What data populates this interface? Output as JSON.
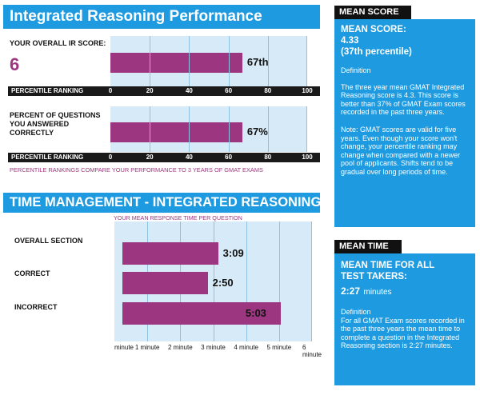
{
  "ir_section": {
    "title": "Integrated Reasoning Performance",
    "score_label": "YOUR OVERALL IR SCORE:",
    "score_value": "6",
    "percentile_axis_label": "PERCENTILE RANKING",
    "questions_label_1": "PERCENT OF QUESTIONS",
    "questions_label_2": "YOU ANSWERED",
    "questions_label_3": "CORRECTLY",
    "footnote": "PERCENTILE RANKINGS COMPARE YOUR PERFORMANCE TO 3 YEARS OF GMAT EXAMS"
  },
  "time_section": {
    "title": "TIME MANAGEMENT - INTEGRATED REASONING",
    "subtitle": "YOUR MEAN RESPONSE TIME PER QUESTION"
  },
  "mean_score_panel": {
    "header": "MEAN SCORE",
    "title": "MEAN SCORE:",
    "value": "4.33",
    "percentile": "(37th percentile)",
    "definition_label": "Definition",
    "definition_text": "The three year mean GMAT Integrated Reasoning score is 4.3. This score is better than 37% of GMAT Exam scores recorded in the past three years.",
    "note_text": "Note:  GMAT scores are valid for five years. Even though your score won't change, your percentile ranking may change when compared with a newer pool of applicants.  Shifts tend to be gradual over long periods of time."
  },
  "mean_time_panel": {
    "header": "MEAN TIME",
    "title_1": "MEAN TIME FOR ALL",
    "title_2": "TEST TAKERS:",
    "value": "2:27",
    "unit": "minutes",
    "definition_label": "Definition",
    "definition_text": "For all GMAT Exam scores recorded in the past three years the mean time to complete a question in the Integrated Reasoning  section is 2:27 minutes."
  },
  "colors": {
    "accent_blue": "#1e9be0",
    "bar_purple": "#9c3680",
    "plot_bg": "#d6eaf7"
  },
  "chart_data": [
    {
      "type": "bar",
      "orientation": "horizontal",
      "title": "YOUR OVERALL IR SCORE:",
      "xlabel": "PERCENTILE RANKING",
      "xlim": [
        0,
        100
      ],
      "ticks": [
        "0",
        "20",
        "40",
        "60",
        "80",
        "100"
      ],
      "values": [
        67
      ],
      "data_label": "67th"
    },
    {
      "type": "bar",
      "orientation": "horizontal",
      "title": "PERCENT OF QUESTIONS YOU ANSWERED CORRECTLY",
      "xlabel": "PERCENTILE RANKING",
      "xlim": [
        0,
        100
      ],
      "ticks": [
        "0",
        "20",
        "40",
        "60",
        "80",
        "100"
      ],
      "values": [
        67
      ],
      "data_label": "67%"
    },
    {
      "type": "bar",
      "orientation": "horizontal",
      "title": "YOUR MEAN RESPONSE TIME PER QUESTION",
      "xlim": [
        0,
        6
      ],
      "ticks": [
        "minute",
        "1 minute",
        "2 minute",
        "3 minute",
        "4 minute",
        "5 minute",
        "6 minute"
      ],
      "categories": [
        "OVERALL SECTION",
        "CORRECT",
        "INCORRECT"
      ],
      "values": [
        3.15,
        2.833,
        5.05
      ],
      "data_labels": [
        "3:09",
        "2:50",
        "5:03"
      ]
    }
  ]
}
